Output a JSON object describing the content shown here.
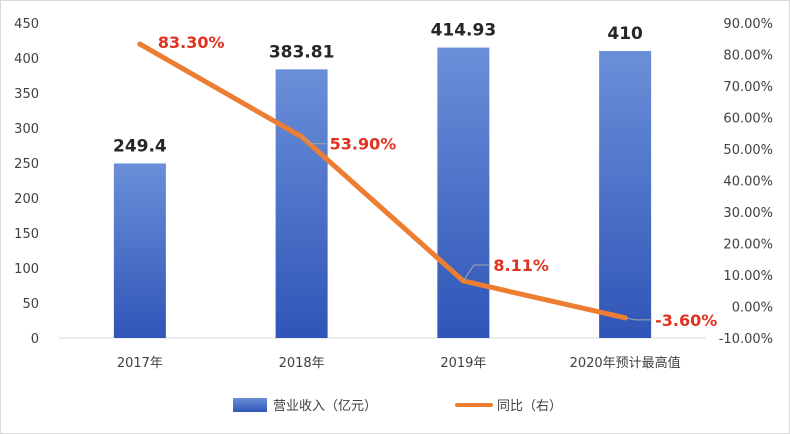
{
  "chart_data": {
    "type": "bar",
    "categories": [
      "2017年",
      "2018年",
      "2019年",
      "2020年预计最高值"
    ],
    "series": [
      {
        "name": "营业收入（亿元）",
        "type": "bar",
        "axis": "left",
        "values": [
          249.4,
          383.81,
          414.93,
          410
        ],
        "labels": [
          "249.4",
          "383.81",
          "414.93",
          "410"
        ],
        "color": "#4a6fc4"
      },
      {
        "name": "同比（右）",
        "type": "line",
        "axis": "right",
        "values": [
          83.3,
          53.9,
          8.11,
          -3.6
        ],
        "labels": [
          "83.30%",
          "53.90%",
          "8.11%",
          "-3.60%"
        ],
        "color": "#ed7d31"
      }
    ],
    "y_left": {
      "ylim": [
        0,
        450
      ],
      "ticks": [
        0,
        50,
        100,
        150,
        200,
        250,
        300,
        350,
        400,
        450
      ],
      "tick_labels": [
        "0",
        "50",
        "100",
        "150",
        "200",
        "250",
        "300",
        "350",
        "400",
        "450"
      ]
    },
    "y_right": {
      "ylim": [
        -10,
        90
      ],
      "ticks": [
        -10,
        0,
        10,
        20,
        30,
        40,
        50,
        60,
        70,
        80,
        90
      ],
      "tick_labels": [
        "-10.00%",
        "0.00%",
        "10.00%",
        "20.00%",
        "30.00%",
        "40.00%",
        "50.00%",
        "60.00%",
        "70.00%",
        "80.00%",
        "90.00%"
      ]
    },
    "grid": false,
    "legend": "bottom",
    "colors": {
      "bar_top": "#6b8fd8",
      "bar_bottom": "#2f55b8",
      "line": "#ed7d31",
      "line_label": "#e0321f",
      "bar_label": "#262626",
      "leader": "#a6a6a6"
    }
  }
}
